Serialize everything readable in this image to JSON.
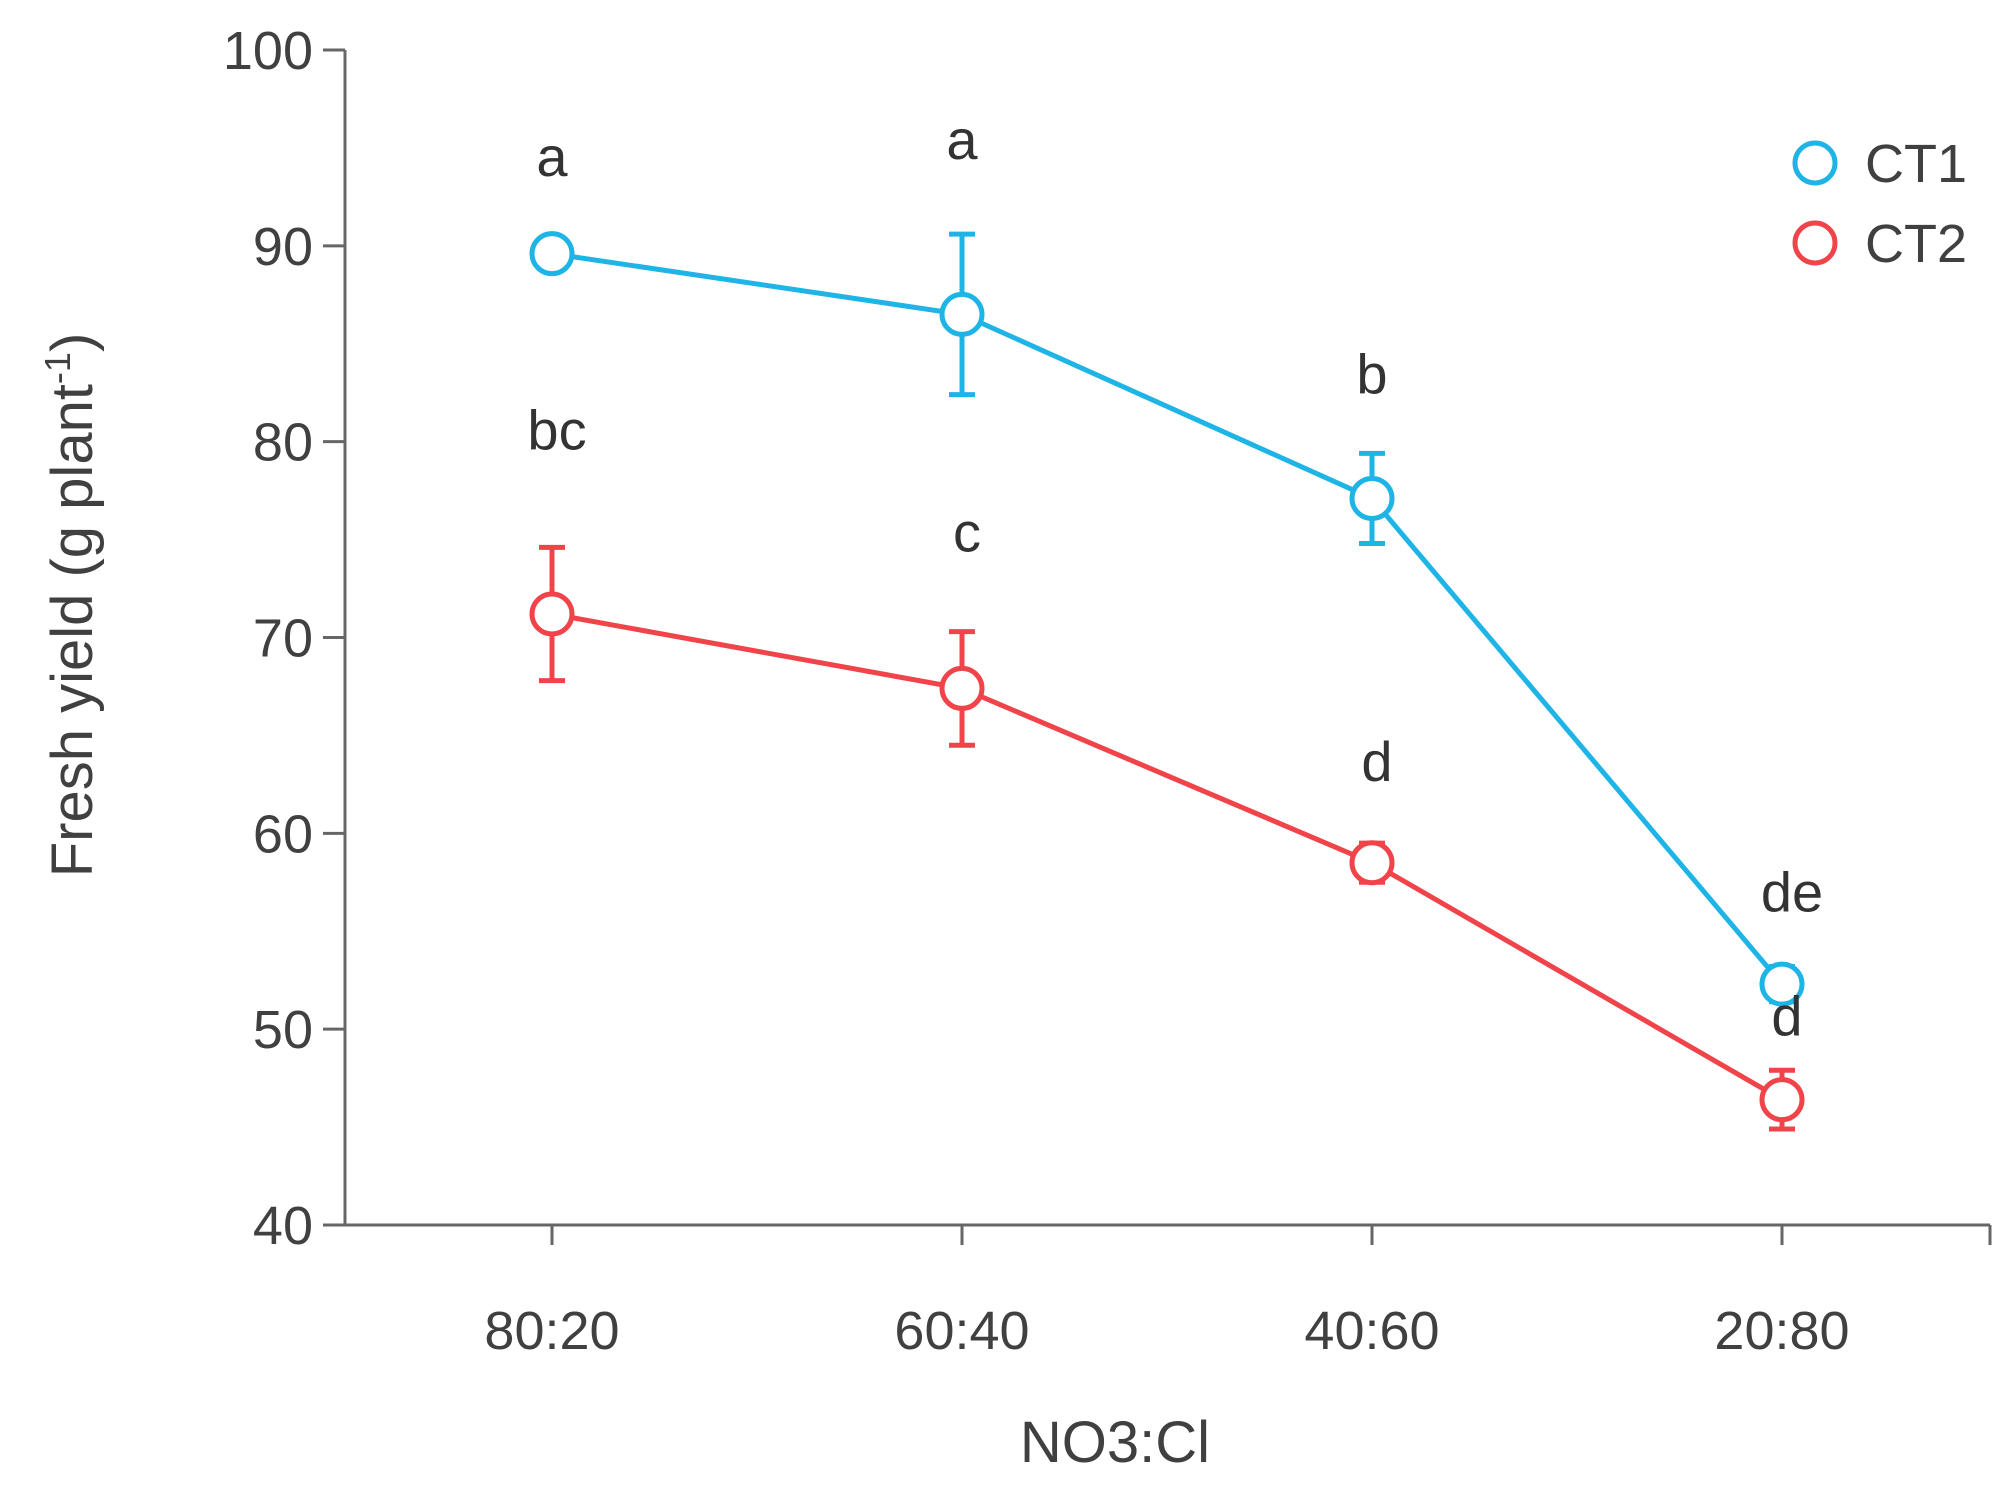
{
  "chart_data": {
    "type": "line",
    "categories": [
      "80:20",
      "60:40",
      "40:60",
      "20:80"
    ],
    "xlabel": "NO3:Cl",
    "ylabel": "Fresh yield (g plant",
    "ylabel_sup": "-1",
    "ylabel_suffix": ")",
    "ylim": [
      40,
      100
    ],
    "yticks": [
      40,
      50,
      60,
      70,
      80,
      90,
      100
    ],
    "grid": false,
    "legend_position": "top-right",
    "series": [
      {
        "name": "CT1",
        "color": "#1EB4E6",
        "values": [
          89.6,
          86.5,
          77.1,
          52.3
        ],
        "errors": [
          0.8,
          4.1,
          2.3,
          0.9
        ],
        "labels": [
          "a",
          "a",
          "b",
          "de"
        ]
      },
      {
        "name": "CT2",
        "color": "#F0444A",
        "values": [
          71.2,
          67.4,
          58.5,
          46.4
        ],
        "errors": [
          3.4,
          2.9,
          1.0,
          1.5
        ],
        "labels": [
          "bc",
          "c",
          "d",
          "d"
        ]
      }
    ]
  }
}
